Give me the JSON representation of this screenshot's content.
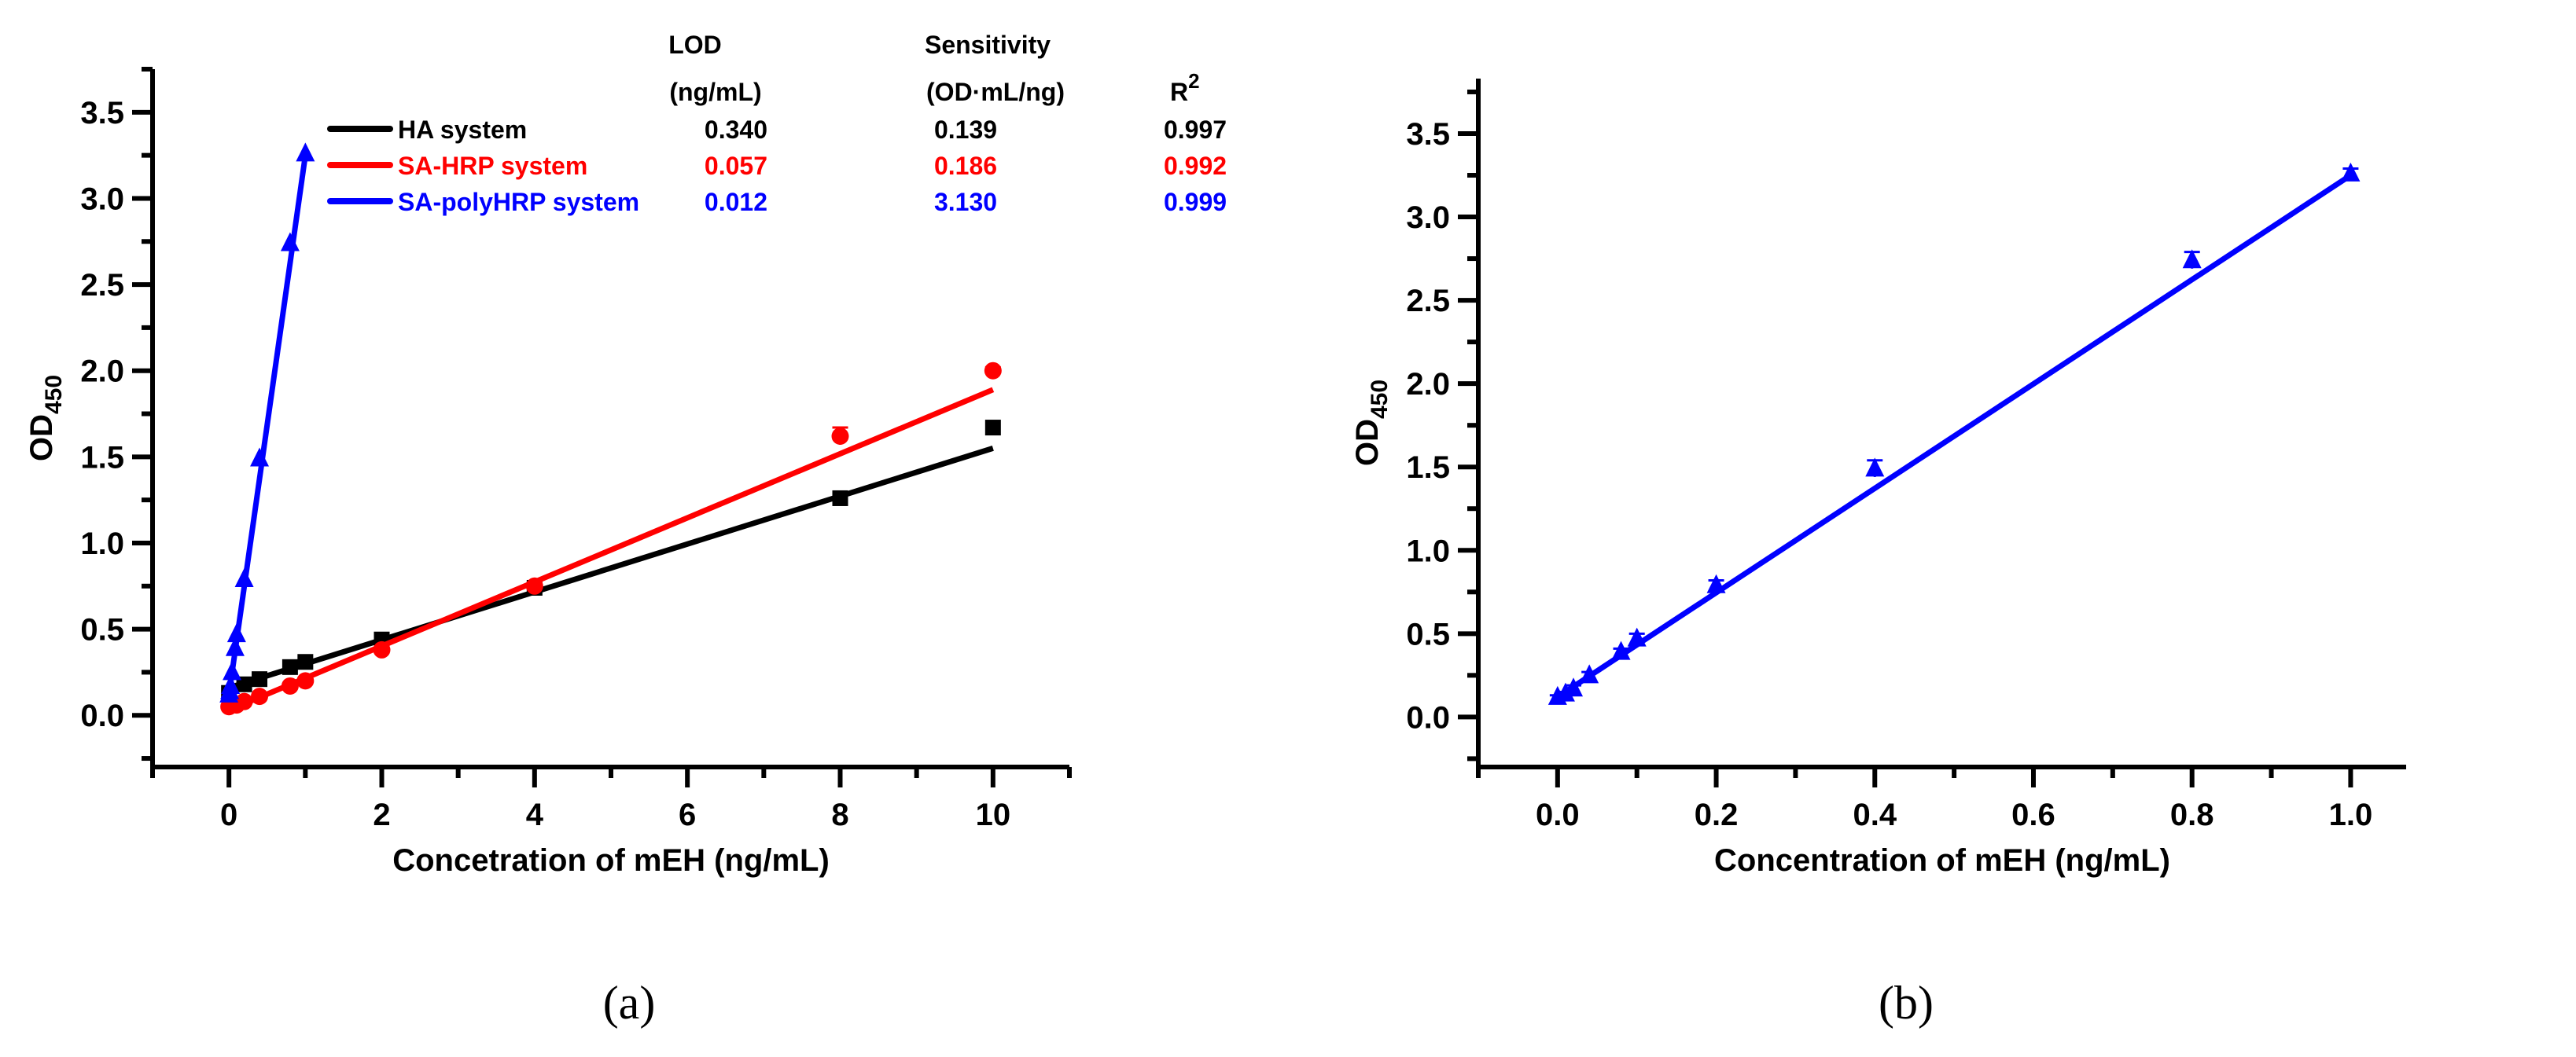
{
  "chart_data": [
    {
      "type": "scatter",
      "panel_label": "(a)",
      "xlabel": "Concetration of mEH (ng/mL)",
      "ylabel": "OD",
      "ylabel_sub": "450",
      "xlim": [
        -1,
        11
      ],
      "ylim": [
        -0.3,
        3.75
      ],
      "xticks": [
        0,
        2,
        4,
        6,
        8,
        10
      ],
      "xtick_labels": [
        "0",
        "2",
        "4",
        "6",
        "8",
        "10"
      ],
      "yticks": [
        0,
        0.5,
        1.0,
        1.5,
        2.0,
        2.5,
        3.0,
        3.5
      ],
      "ytick_labels": [
        "0.0",
        "0.5",
        "1.0",
        "1.5",
        "2.0",
        "2.5",
        "3.0",
        "3.5"
      ],
      "grid": false,
      "legend_table": {
        "headers": {
          "lod": "LOD",
          "lod_unit": "(ng/mL)",
          "sens": "Sensitivity",
          "sens_unit": "(OD·mL/ng)",
          "r2": "R",
          "r2_sup": "2"
        },
        "rows": [
          {
            "name": "HA system",
            "lod": "0.340",
            "sens": "0.139",
            "r2": "0.997",
            "color": "#000000"
          },
          {
            "name": "SA-HRP system",
            "lod": "0.057",
            "sens": "0.186",
            "r2": "0.992",
            "color": "#ff0000"
          },
          {
            "name": "SA-polyHRP system",
            "lod": "0.012",
            "sens": "3.130",
            "r2": "0.999",
            "color": "#0000ff"
          }
        ]
      },
      "series": [
        {
          "name": "HA system",
          "color": "#000000",
          "marker": "square",
          "x": [
            0,
            0.2,
            0.4,
            0.8,
            1,
            2,
            4,
            8,
            10
          ],
          "y": [
            0.13,
            0.18,
            0.21,
            0.28,
            0.31,
            0.44,
            0.74,
            1.26,
            1.67
          ],
          "fit": {
            "slope": 0.139,
            "intercept": 0.16,
            "x_range": [
              0,
              10
            ]
          }
        },
        {
          "name": "SA-HRP system",
          "color": "#ff0000",
          "marker": "circle",
          "x": [
            0,
            0.1,
            0.2,
            0.4,
            0.8,
            1,
            2,
            4,
            8,
            10
          ],
          "y": [
            0.05,
            0.06,
            0.08,
            0.11,
            0.17,
            0.2,
            0.38,
            0.75,
            1.62,
            2.0
          ],
          "err": [
            0.01,
            0.01,
            0.01,
            0.01,
            0.01,
            0.01,
            0.02,
            0.02,
            0.05,
            0.02
          ],
          "fit": {
            "slope": 0.186,
            "intercept": 0.03,
            "x_range": [
              0,
              10
            ]
          }
        },
        {
          "name": "SA-polyHRP system",
          "color": "#0000ff",
          "marker": "triangle",
          "x": [
            0,
            0.01,
            0.02,
            0.04,
            0.08,
            0.1,
            0.2,
            0.4,
            0.8,
            1
          ],
          "y": [
            0.12,
            0.14,
            0.17,
            0.25,
            0.39,
            0.47,
            0.79,
            1.49,
            2.74,
            3.26
          ],
          "fit": {
            "slope": 3.13,
            "intercept": 0.12,
            "x_range": [
              0,
              1
            ]
          }
        }
      ]
    },
    {
      "type": "scatter",
      "panel_label": "(b)",
      "xlabel": "Concentration of mEH (ng/mL)",
      "ylabel": "OD",
      "ylabel_sub": "450",
      "xlim": [
        -0.1,
        1.07
      ],
      "ylim": [
        -0.3,
        3.83
      ],
      "xticks": [
        0,
        0.2,
        0.4,
        0.6,
        0.8,
        1.0
      ],
      "xtick_labels": [
        "0.0",
        "0.2",
        "0.4",
        "0.6",
        "0.8",
        "1.0"
      ],
      "yticks": [
        0,
        0.5,
        1.0,
        1.5,
        2.0,
        2.5,
        3.0,
        3.5
      ],
      "ytick_labels": [
        "0.0",
        "0.5",
        "1.0",
        "1.5",
        "2.0",
        "2.5",
        "3.0",
        "3.5"
      ],
      "grid": false,
      "series": [
        {
          "name": "SA-polyHRP system",
          "color": "#0000ff",
          "marker": "triangle",
          "x": [
            0,
            0.01,
            0.02,
            0.04,
            0.08,
            0.1,
            0.2,
            0.4,
            0.8,
            1
          ],
          "y": [
            0.12,
            0.14,
            0.17,
            0.25,
            0.39,
            0.47,
            0.79,
            1.49,
            2.74,
            3.26
          ],
          "err": [
            0.01,
            0.01,
            0.02,
            0.02,
            0.02,
            0.03,
            0.03,
            0.05,
            0.05,
            0.03
          ],
          "fit": {
            "slope": 3.13,
            "intercept": 0.12,
            "x_range": [
              0,
              1
            ]
          }
        }
      ]
    }
  ]
}
